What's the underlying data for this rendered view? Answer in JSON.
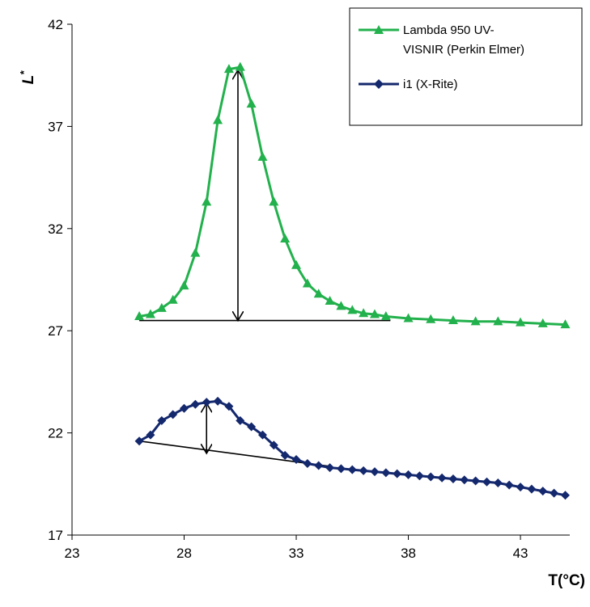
{
  "chart_data": {
    "type": "line",
    "xlabel": "T(°C)",
    "ylabel_main": "L",
    "ylabel_sup": "*",
    "xlim": [
      23,
      45.2
    ],
    "ylim": [
      17,
      42
    ],
    "x_ticks": [
      23,
      28,
      33,
      38,
      43
    ],
    "y_ticks": [
      17,
      22,
      27,
      32,
      37,
      42
    ],
    "grid": false,
    "legend_position": "top-right",
    "legend": {
      "line1": "Lambda 950 UV-",
      "line2": "VISNIR (Perkin Elmer)",
      "line3": "i1 (X-Rite)"
    },
    "series": [
      {
        "name": "Lambda 950 UV-VISNIR (Perkin Elmer)",
        "color": "#22b14c",
        "marker": "triangle",
        "x": [
          26,
          26.5,
          27,
          27.5,
          28,
          28.5,
          29,
          29.5,
          30,
          30.5,
          31,
          31.5,
          32,
          32.5,
          33,
          33.5,
          34,
          34.5,
          35,
          35.5,
          36,
          36.5,
          37,
          38,
          39,
          40,
          41,
          42,
          43,
          44,
          45
        ],
        "y": [
          27.7,
          27.8,
          28.1,
          28.5,
          29.2,
          30.8,
          33.3,
          37.3,
          39.8,
          39.9,
          38.1,
          35.5,
          33.3,
          31.5,
          30.2,
          29.3,
          28.8,
          28.45,
          28.2,
          28.0,
          27.85,
          27.8,
          27.7,
          27.6,
          27.55,
          27.5,
          27.45,
          27.45,
          27.4,
          27.35,
          27.3
        ]
      },
      {
        "name": "i1 (X-Rite)",
        "color": "#14286e",
        "marker": "diamond",
        "x": [
          26,
          26.5,
          27,
          27.5,
          28,
          28.5,
          29,
          29.5,
          30,
          30.5,
          31,
          31.5,
          32,
          32.5,
          33,
          33.5,
          34,
          34.5,
          35,
          35.5,
          36,
          36.5,
          37,
          37.5,
          38,
          38.5,
          39,
          39.5,
          40,
          40.5,
          41,
          41.5,
          42,
          42.5,
          43,
          43.5,
          44,
          44.5,
          45
        ],
        "y": [
          21.6,
          21.9,
          22.6,
          22.9,
          23.2,
          23.4,
          23.5,
          23.55,
          23.3,
          22.6,
          22.3,
          21.9,
          21.4,
          20.9,
          20.7,
          20.5,
          20.4,
          20.3,
          20.25,
          20.2,
          20.15,
          20.1,
          20.05,
          20.0,
          19.95,
          19.9,
          19.85,
          19.8,
          19.75,
          19.7,
          19.65,
          19.6,
          19.55,
          19.45,
          19.35,
          19.25,
          19.15,
          19.05,
          18.95
        ]
      }
    ],
    "annotations": [
      {
        "kind": "baseline",
        "color": "#000000",
        "x": [
          26,
          37.2
        ],
        "y": [
          27.5,
          27.5
        ]
      },
      {
        "kind": "baseline",
        "color": "#000000",
        "x": [
          26,
          34.6
        ],
        "y": [
          21.6,
          20.35
        ]
      },
      {
        "kind": "double-arrow",
        "color": "#000000",
        "x": [
          30.4,
          30.4
        ],
        "y": [
          27.5,
          39.75
        ]
      },
      {
        "kind": "double-arrow",
        "color": "#000000",
        "x": [
          29,
          29
        ],
        "y": [
          21.0,
          23.45
        ]
      }
    ]
  }
}
